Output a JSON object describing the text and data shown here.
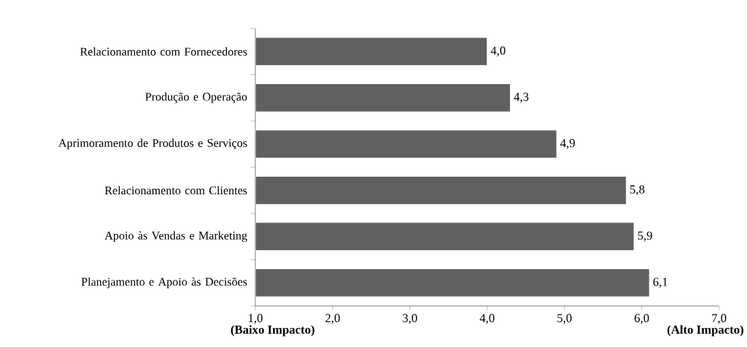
{
  "chart_data": {
    "type": "bar",
    "orientation": "horizontal",
    "categories": [
      "Relacionamento com Fornecedores",
      "Produção e Operação",
      "Aprimoramento de Produtos e Serviços",
      "Relacionamento com Clientes",
      "Apoio às Vendas e Marketing",
      "Planejamento e Apoio às Decisões"
    ],
    "values": [
      4.0,
      4.3,
      4.9,
      5.8,
      5.9,
      6.1
    ],
    "value_labels": [
      "4,0",
      "4,3",
      "4,9",
      "5,8",
      "5,9",
      "6,1"
    ],
    "color": "#606060",
    "xlim": [
      1,
      7
    ],
    "xticks": [
      {
        "value": 1,
        "label": "1,0"
      },
      {
        "value": 2,
        "label": "2,0"
      },
      {
        "value": 3,
        "label": "3,0"
      },
      {
        "value": 4,
        "label": "4,0"
      },
      {
        "value": 5,
        "label": "5,0"
      },
      {
        "value": 6,
        "label": "6,0"
      },
      {
        "value": 7,
        "label": "7,0"
      }
    ],
    "annotations": [
      "(Baixo Impacto)",
      "(Alto Impacto)"
    ],
    "grid": false
  }
}
